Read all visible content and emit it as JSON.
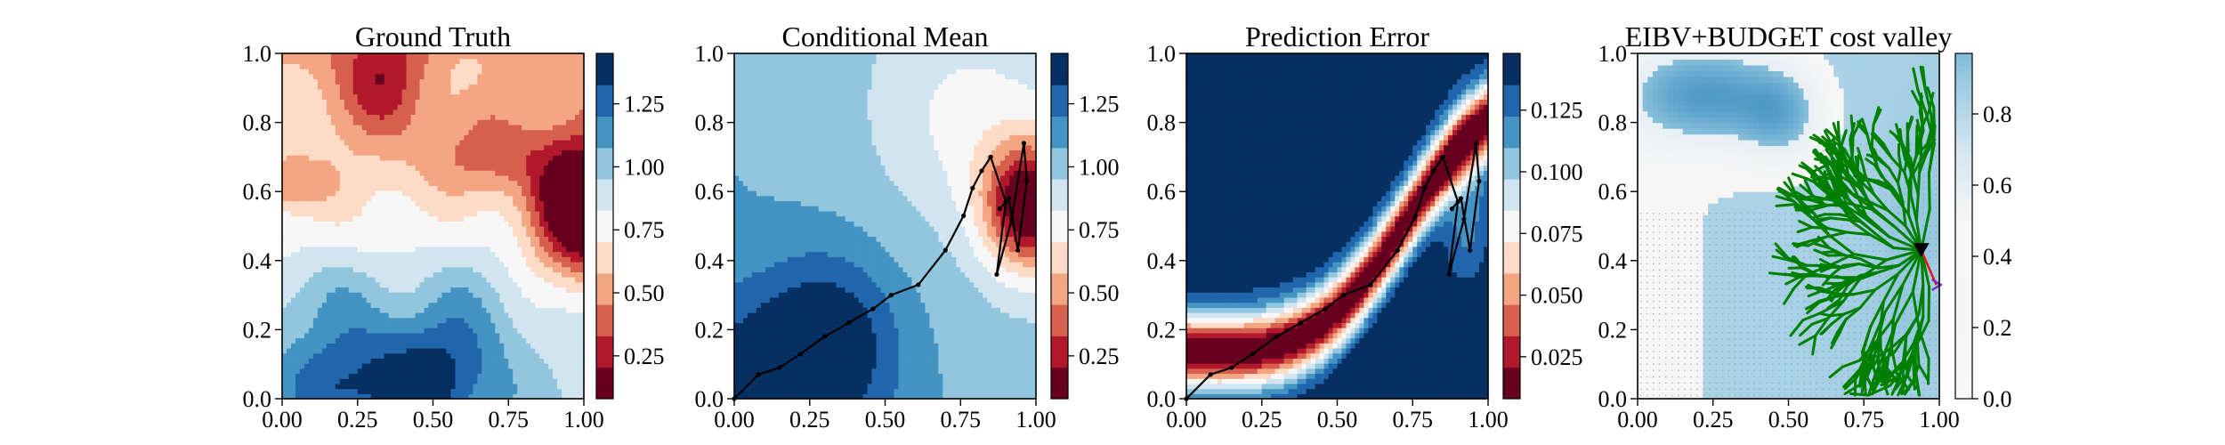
{
  "chart_data": [
    {
      "type": "heatmap",
      "title": "Ground Truth",
      "xlim": [
        0,
        1
      ],
      "ylim": [
        0,
        1
      ],
      "xticks": [
        "0.00",
        "0.25",
        "0.50",
        "0.75",
        "1.00"
      ],
      "yticks": [
        "0.0",
        "0.2",
        "0.4",
        "0.6",
        "0.8",
        "1.0"
      ],
      "colormap": "RdBu",
      "colorbar": {
        "range": [
          0.08,
          1.45
        ],
        "ticks": [
          "0.25",
          "0.50",
          "0.75",
          "1.00",
          "1.25"
        ],
        "tick_values": [
          0.25,
          0.5,
          0.75,
          1.0,
          1.25
        ]
      },
      "field_features": [
        {
          "kind": "low",
          "x": 0.98,
          "y": 0.55,
          "value": 0.1
        },
        {
          "kind": "low",
          "x": 0.35,
          "y": 0.95,
          "value": 0.7
        },
        {
          "kind": "high",
          "x": 0.25,
          "y": 0.03,
          "value": 1.42
        },
        {
          "kind": "high",
          "x": 0.5,
          "y": 0.06,
          "value": 1.4
        }
      ]
    },
    {
      "type": "heatmap",
      "title": "Conditional Mean",
      "xlim": [
        0,
        1
      ],
      "ylim": [
        0,
        1
      ],
      "xticks": [
        "0.00",
        "0.25",
        "0.50",
        "0.75",
        "1.00"
      ],
      "yticks": [
        "0.0",
        "0.2",
        "0.4",
        "0.6",
        "0.8",
        "1.0"
      ],
      "colormap": "RdBu",
      "colorbar": {
        "range": [
          0.08,
          1.45
        ],
        "ticks": [
          "0.25",
          "0.50",
          "0.75",
          "1.00",
          "1.25"
        ],
        "tick_values": [
          0.25,
          0.5,
          0.75,
          1.0,
          1.25
        ]
      },
      "path": [
        [
          0.0,
          0.0
        ],
        [
          0.08,
          0.07
        ],
        [
          0.15,
          0.09
        ],
        [
          0.22,
          0.13
        ],
        [
          0.3,
          0.18
        ],
        [
          0.38,
          0.22
        ],
        [
          0.46,
          0.26
        ],
        [
          0.52,
          0.3
        ],
        [
          0.61,
          0.33
        ],
        [
          0.7,
          0.43
        ],
        [
          0.76,
          0.53
        ],
        [
          0.79,
          0.61
        ],
        [
          0.82,
          0.66
        ],
        [
          0.85,
          0.7
        ],
        [
          0.9,
          0.57
        ],
        [
          0.87,
          0.36
        ],
        [
          0.92,
          0.52
        ],
        [
          0.96,
          0.74
        ],
        [
          0.97,
          0.63
        ],
        [
          0.94,
          0.43
        ],
        [
          0.91,
          0.58
        ],
        [
          0.88,
          0.55
        ]
      ]
    },
    {
      "type": "heatmap",
      "title": "Prediction Error",
      "xlim": [
        0,
        1
      ],
      "ylim": [
        0,
        1
      ],
      "xticks": [
        "0.00",
        "0.25",
        "0.50",
        "0.75",
        "1.00"
      ],
      "yticks": [
        "0.0",
        "0.2",
        "0.4",
        "0.6",
        "0.8",
        "1.0"
      ],
      "colormap": "RdBu",
      "colorbar": {
        "range": [
          0.008,
          0.148
        ],
        "ticks": [
          "0.025",
          "0.050",
          "0.075",
          "0.100",
          "0.125"
        ],
        "tick_values": [
          0.025,
          0.05,
          0.075,
          0.1,
          0.125
        ]
      },
      "path": [
        [
          0.0,
          0.0
        ],
        [
          0.08,
          0.07
        ],
        [
          0.15,
          0.09
        ],
        [
          0.22,
          0.13
        ],
        [
          0.3,
          0.18
        ],
        [
          0.38,
          0.22
        ],
        [
          0.46,
          0.26
        ],
        [
          0.52,
          0.3
        ],
        [
          0.61,
          0.33
        ],
        [
          0.7,
          0.43
        ],
        [
          0.76,
          0.53
        ],
        [
          0.79,
          0.61
        ],
        [
          0.82,
          0.66
        ],
        [
          0.85,
          0.7
        ],
        [
          0.9,
          0.57
        ],
        [
          0.87,
          0.36
        ],
        [
          0.92,
          0.52
        ],
        [
          0.96,
          0.74
        ],
        [
          0.97,
          0.63
        ],
        [
          0.94,
          0.43
        ],
        [
          0.91,
          0.58
        ],
        [
          0.88,
          0.55
        ]
      ]
    },
    {
      "type": "heatmap",
      "title": "EIBV+BUDGET cost valley",
      "xlim": [
        0,
        1
      ],
      "ylim": [
        0,
        1
      ],
      "xticks": [
        "0.00",
        "0.25",
        "0.50",
        "0.75",
        "1.00"
      ],
      "yticks": [
        "0.0",
        "0.2",
        "0.4",
        "0.6",
        "0.8",
        "1.0"
      ],
      "colormap": "RdBu",
      "colorbar": {
        "range": [
          0,
          0.97
        ],
        "ticks": [
          "0.0",
          "0.2",
          "0.4",
          "0.6",
          "0.8"
        ],
        "tick_values": [
          0,
          0.2,
          0.4,
          0.6,
          0.8
        ]
      },
      "tree_color": "#007f00",
      "current_location": [
        0.94,
        0.43
      ],
      "next_location": [
        0.99,
        0.33
      ]
    }
  ]
}
